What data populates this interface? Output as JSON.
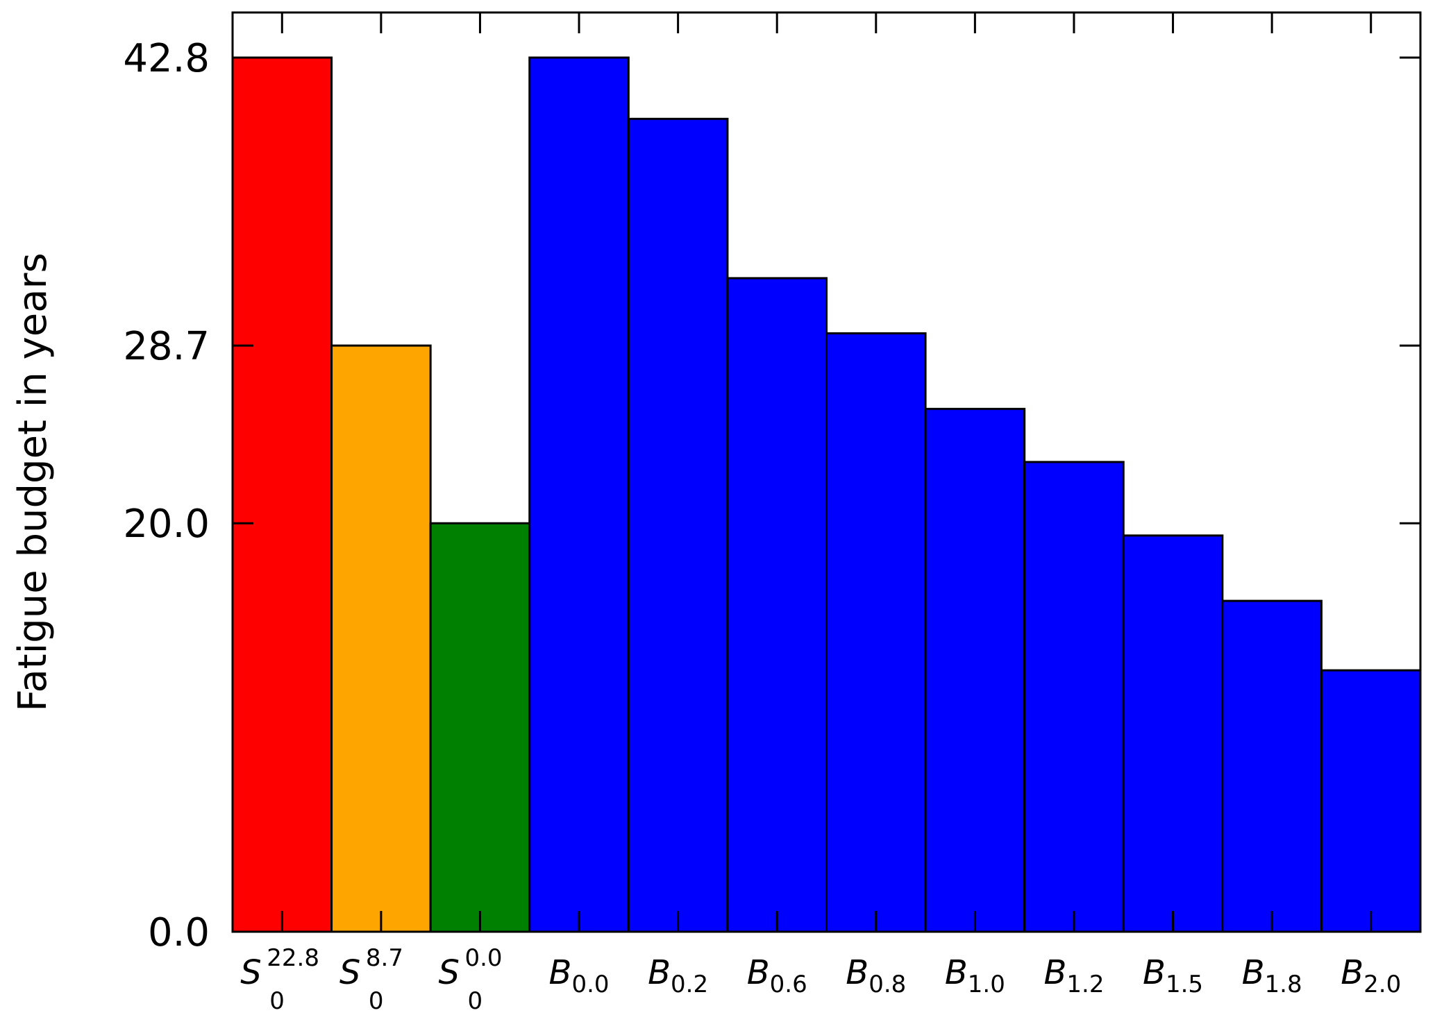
{
  "chart_data": {
    "type": "bar",
    "title": "",
    "xlabel": "",
    "ylabel": "Fatigue budget in years",
    "ylim": [
      0,
      42.8
    ],
    "yticks": [
      "0.0",
      "20.0",
      "28.7",
      "42.8"
    ],
    "grid": false,
    "categories": [
      {
        "base": "S",
        "sub": "0",
        "sup": "22.8"
      },
      {
        "base": "S",
        "sub": "0",
        "sup": "8.7"
      },
      {
        "base": "S",
        "sub": "0",
        "sup": "0.0"
      },
      {
        "base": "B",
        "sub": "0.0",
        "sup": ""
      },
      {
        "base": "B",
        "sub": "0.2",
        "sup": ""
      },
      {
        "base": "B",
        "sub": "0.6",
        "sup": ""
      },
      {
        "base": "B",
        "sub": "0.8",
        "sup": ""
      },
      {
        "base": "B",
        "sub": "1.0",
        "sup": ""
      },
      {
        "base": "B",
        "sub": "1.2",
        "sup": ""
      },
      {
        "base": "B",
        "sub": "1.5",
        "sup": ""
      },
      {
        "base": "B",
        "sub": "1.8",
        "sup": ""
      },
      {
        "base": "B",
        "sub": "2.0",
        "sup": ""
      }
    ],
    "values": [
      42.8,
      28.7,
      20.0,
      42.8,
      39.8,
      32.0,
      29.3,
      25.6,
      23.0,
      19.4,
      16.2,
      12.8
    ],
    "colors": [
      "#ff0000",
      "#ffa500",
      "#008000",
      "#0000ff",
      "#0000ff",
      "#0000ff",
      "#0000ff",
      "#0000ff",
      "#0000ff",
      "#0000ff",
      "#0000ff",
      "#0000ff"
    ]
  }
}
